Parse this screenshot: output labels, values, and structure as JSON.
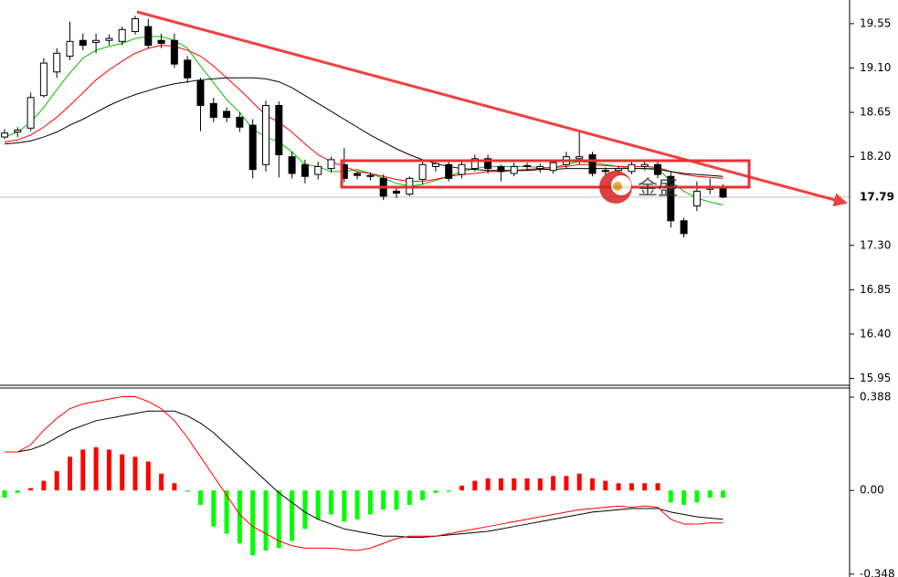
{
  "chart_data": [
    {
      "type": "candlestick",
      "open": [
        18.4,
        18.45,
        18.49,
        18.82,
        19.06,
        19.22,
        19.38,
        19.36,
        19.38,
        19.37,
        19.47,
        19.52,
        19.38,
        19.38,
        19.18,
        18.97,
        18.74,
        18.66,
        18.6,
        18.52,
        18.12,
        18.72,
        18.2,
        18.12,
        18.02,
        18.08,
        18.12,
        18.03,
        18.01,
        17.98,
        17.85,
        17.82,
        17.97,
        18.1,
        18.12,
        18.02,
        18.08,
        18.18,
        18.1,
        18.03,
        18.1,
        18.08,
        18.06,
        18.12,
        18.18,
        18.22,
        18.06,
        18.06,
        18.05,
        18.1,
        18.12,
        18.0,
        17.55,
        17.7,
        17.87,
        17.88
      ],
      "high": [
        18.48,
        18.5,
        18.85,
        19.2,
        19.3,
        19.57,
        19.45,
        19.45,
        19.44,
        19.52,
        19.63,
        19.6,
        19.45,
        19.45,
        19.22,
        19.0,
        18.8,
        18.7,
        18.65,
        18.58,
        18.77,
        18.76,
        18.25,
        18.17,
        18.15,
        18.2,
        18.29,
        18.05,
        18.04,
        18.02,
        17.88,
        18.0,
        18.16,
        18.17,
        18.15,
        18.16,
        18.22,
        18.22,
        18.12,
        18.14,
        18.14,
        18.13,
        18.17,
        18.25,
        18.45,
        18.25,
        18.09,
        18.11,
        18.15,
        18.15,
        18.15,
        18.05,
        17.58,
        17.95,
        17.98,
        17.92
      ],
      "low": [
        18.38,
        18.4,
        18.46,
        18.8,
        19.0,
        19.18,
        19.28,
        19.25,
        19.33,
        19.33,
        19.44,
        19.3,
        19.3,
        19.1,
        18.95,
        18.46,
        18.55,
        18.55,
        18.45,
        17.98,
        18.05,
        17.99,
        17.98,
        17.93,
        17.97,
        18.04,
        17.94,
        17.97,
        17.96,
        17.76,
        17.78,
        17.8,
        17.92,
        18.05,
        17.95,
        17.98,
        18.05,
        18.03,
        17.95,
        18.0,
        18.06,
        18.04,
        18.03,
        18.08,
        18.12,
        18.0,
        18.01,
        18.02,
        18.02,
        18.06,
        17.98,
        17.48,
        17.38,
        17.65,
        17.82,
        17.78
      ],
      "close": [
        18.44,
        18.47,
        18.8,
        19.15,
        19.25,
        19.37,
        19.33,
        19.38,
        19.4,
        19.49,
        19.6,
        19.33,
        19.35,
        19.14,
        19.0,
        18.72,
        18.6,
        18.6,
        18.5,
        18.07,
        18.72,
        18.22,
        18.03,
        18.0,
        18.1,
        18.17,
        17.98,
        18.01,
        18.0,
        17.8,
        17.83,
        17.98,
        18.12,
        18.13,
        17.98,
        18.12,
        18.18,
        18.08,
        18.05,
        18.1,
        18.11,
        18.1,
        18.14,
        18.2,
        18.2,
        18.03,
        18.05,
        18.08,
        18.12,
        18.12,
        18.02,
        17.55,
        17.42,
        17.85,
        17.9,
        17.79
      ],
      "series": [
        {
          "color": "#00c000",
          "values": [
            18.4,
            18.45,
            18.55,
            18.7,
            18.88,
            19.05,
            19.2,
            19.28,
            19.32,
            19.35,
            19.4,
            19.42,
            19.42,
            19.38,
            19.3,
            19.12,
            18.95,
            18.78,
            18.65,
            18.48,
            18.4,
            18.35,
            18.25,
            18.12,
            18.1,
            18.05,
            18.05,
            18.07,
            18.03,
            17.98,
            17.93,
            17.9,
            17.92,
            17.96,
            18.0,
            18.05,
            18.08,
            18.1,
            18.1,
            18.1,
            18.1,
            18.09,
            18.09,
            18.12,
            18.15,
            18.14,
            18.12,
            18.1,
            18.08,
            18.08,
            18.08,
            17.95,
            17.85,
            17.78,
            17.74,
            17.71
          ]
        },
        {
          "color": "#ff0000",
          "values": [
            18.35,
            18.37,
            18.42,
            18.5,
            18.6,
            18.72,
            18.85,
            18.98,
            19.08,
            19.17,
            19.25,
            19.3,
            19.33,
            19.32,
            19.28,
            19.22,
            19.12,
            19.0,
            18.88,
            18.75,
            18.62,
            18.55,
            18.45,
            18.33,
            18.22,
            18.15,
            18.1,
            18.05,
            18.03,
            18.0,
            17.97,
            17.95,
            17.95,
            17.97,
            18.0,
            18.02,
            18.03,
            18.05,
            18.05,
            18.06,
            18.07,
            18.08,
            18.09,
            18.1,
            18.12,
            18.12,
            18.11,
            18.1,
            18.1,
            18.1,
            18.09,
            18.05,
            18.02,
            18.0,
            17.99,
            17.98
          ]
        },
        {
          "color": "#000000",
          "values": [
            18.33,
            18.34,
            18.36,
            18.4,
            18.45,
            18.52,
            18.58,
            18.65,
            18.72,
            18.78,
            18.83,
            18.87,
            18.91,
            18.94,
            18.96,
            18.98,
            18.99,
            19.0,
            19.0,
            19.0,
            18.99,
            18.96,
            18.9,
            18.82,
            18.74,
            18.66,
            18.58,
            18.5,
            18.42,
            18.35,
            18.28,
            18.22,
            18.17,
            18.13,
            18.1,
            18.08,
            18.07,
            18.06,
            18.06,
            18.06,
            18.06,
            18.07,
            18.07,
            18.08,
            18.08,
            18.08,
            18.08,
            18.08,
            18.08,
            18.08,
            18.07,
            18.05,
            18.03,
            18.02,
            18.01,
            18.0
          ]
        }
      ],
      "ylim": [
        15.89,
        19.79
      ],
      "yticks": [
        {
          "value": 15.95,
          "label": "15.95"
        },
        {
          "value": 16.4,
          "label": "16.40"
        },
        16.85,
        {
          "value": 17.3,
          "label": "17.30"
        },
        {
          "value": 18.2,
          "label": "18.20"
        },
        18.65,
        {
          "value": 19.1,
          "label": "19.10"
        },
        19.55
      ],
      "current_price": 17.79,
      "watermark": "金盛"
    },
    {
      "type": "macd",
      "values": [
        -0.03,
        -0.01,
        0.01,
        0.04,
        0.08,
        0.14,
        0.17,
        0.18,
        0.17,
        0.15,
        0.14,
        0.12,
        0.07,
        0.03,
        -0.005,
        -0.06,
        -0.15,
        -0.18,
        -0.22,
        -0.27,
        -0.25,
        -0.24,
        -0.21,
        -0.16,
        -0.12,
        -0.1,
        -0.13,
        -0.12,
        -0.1,
        -0.08,
        -0.08,
        -0.06,
        -0.04,
        -0.01,
        -0.005,
        0.02,
        0.04,
        0.05,
        0.05,
        0.05,
        0.05,
        0.05,
        0.06,
        0.06,
        0.07,
        0.05,
        0.04,
        0.03,
        0.03,
        0.03,
        0.03,
        -0.05,
        -0.06,
        -0.05,
        -0.03,
        -0.03
      ],
      "up_color": "#ff0000",
      "down_color": "#00ff00",
      "series": [
        {
          "color": "#000000",
          "values": [
            0.16,
            0.16,
            0.17,
            0.19,
            0.22,
            0.25,
            0.27,
            0.29,
            0.3,
            0.31,
            0.32,
            0.33,
            0.33,
            0.33,
            0.31,
            0.28,
            0.24,
            0.19,
            0.14,
            0.09,
            0.04,
            -0.01,
            -0.05,
            -0.09,
            -0.12,
            -0.14,
            -0.16,
            -0.17,
            -0.18,
            -0.19,
            -0.19,
            -0.195,
            -0.195,
            -0.19,
            -0.185,
            -0.18,
            -0.175,
            -0.17,
            -0.16,
            -0.15,
            -0.14,
            -0.13,
            -0.12,
            -0.11,
            -0.1,
            -0.09,
            -0.085,
            -0.08,
            -0.075,
            -0.075,
            -0.075,
            -0.09,
            -0.1,
            -0.11,
            -0.115,
            -0.12
          ]
        },
        {
          "color": "#ff0000",
          "values": [
            0.16,
            0.16,
            0.19,
            0.25,
            0.3,
            0.34,
            0.36,
            0.37,
            0.38,
            0.39,
            0.39,
            0.37,
            0.34,
            0.29,
            0.22,
            0.14,
            0.06,
            -0.02,
            -0.1,
            -0.15,
            -0.18,
            -0.21,
            -0.23,
            -0.24,
            -0.24,
            -0.24,
            -0.245,
            -0.25,
            -0.24,
            -0.22,
            -0.2,
            -0.19,
            -0.19,
            -0.19,
            -0.18,
            -0.17,
            -0.16,
            -0.15,
            -0.14,
            -0.13,
            -0.12,
            -0.11,
            -0.1,
            -0.09,
            -0.08,
            -0.075,
            -0.07,
            -0.065,
            -0.07,
            -0.065,
            -0.07,
            -0.12,
            -0.14,
            -0.14,
            -0.135,
            -0.135
          ]
        }
      ],
      "ylim": [
        -0.36,
        0.426
      ],
      "yticks": [
        -0.348,
        {
          "value": 0,
          "label": "0.00"
        },
        0.388
      ]
    }
  ]
}
